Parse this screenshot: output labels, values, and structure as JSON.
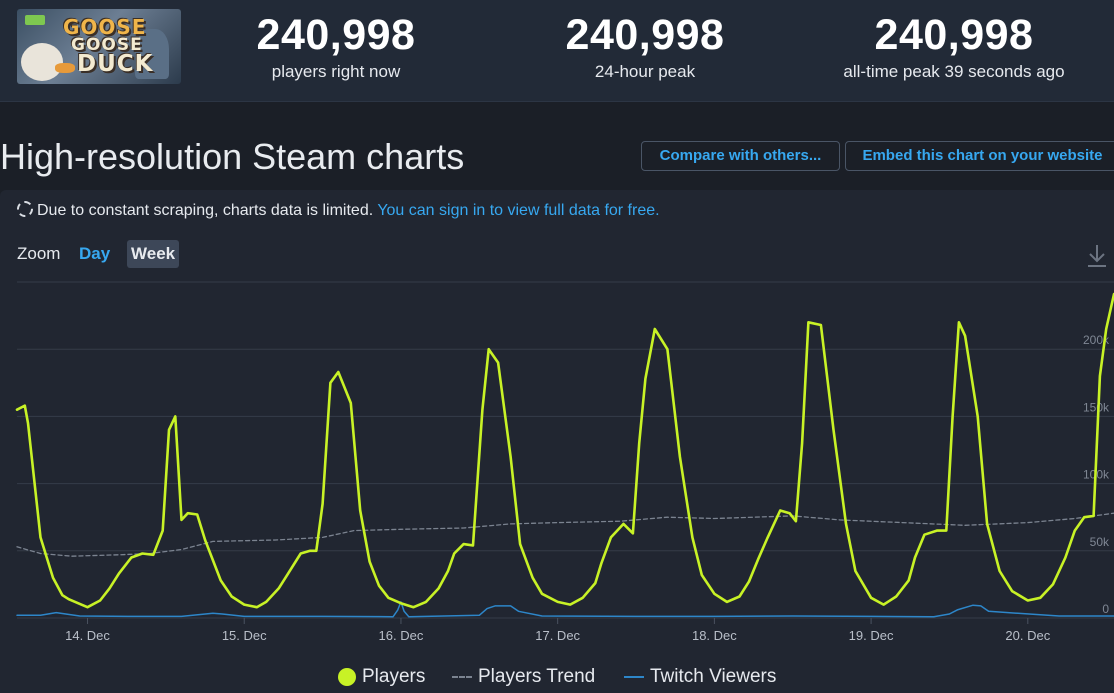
{
  "game": {
    "logo_text": [
      "GOOSE",
      "GOOSE",
      "DUCK"
    ]
  },
  "stats": [
    {
      "value": "240,998",
      "label": "players right now"
    },
    {
      "value": "240,998",
      "label": "24-hour peak"
    },
    {
      "value": "240,998",
      "label": "all-time peak 39 seconds ago"
    }
  ],
  "page": {
    "title": "High-resolution Steam charts",
    "compare_button": "Compare with others...",
    "embed_button": "Embed this chart on your website"
  },
  "notice": {
    "text": "Due to constant scraping, charts data is limited.",
    "link": "You can sign in to view full data for free."
  },
  "zoom": {
    "label": "Zoom",
    "options": [
      "Day",
      "Week"
    ],
    "active": "Week"
  },
  "colors": {
    "players": "#c8f226",
    "trend": "#7b8390",
    "twitch": "#2d86c9",
    "accent": "#37a8f0"
  },
  "chart_data": {
    "type": "line",
    "title": "",
    "x_axis": {
      "ticks": [
        "14. Dec",
        "15. Dec",
        "16. Dec",
        "17. Dec",
        "18. Dec",
        "19. Dec",
        "20. Dec"
      ],
      "start_day": 13.55,
      "end_day": 20.55
    },
    "y_axis": {
      "min": 0,
      "max": 250000,
      "ticks": [
        0,
        50000,
        100000,
        150000,
        200000
      ],
      "tick_labels": [
        "0",
        "50k",
        "100k",
        "150k",
        "200k"
      ]
    },
    "grid": true,
    "legend": [
      "Players",
      "Players Trend",
      "Twitch Viewers"
    ],
    "series": [
      {
        "name": "Players",
        "x": [
          13.55,
          13.6,
          13.62,
          13.7,
          13.78,
          13.84,
          13.88,
          13.96,
          14.0,
          14.08,
          14.14,
          14.2,
          14.28,
          14.35,
          14.42,
          14.48,
          14.52,
          14.56,
          14.6,
          14.64,
          14.7,
          14.75,
          14.85,
          14.92,
          15.0,
          15.08,
          15.14,
          15.22,
          15.28,
          15.36,
          15.42,
          15.46,
          15.5,
          15.55,
          15.6,
          15.68,
          15.74,
          15.8,
          15.86,
          15.92,
          16.0,
          16.08,
          16.16,
          16.24,
          16.3,
          16.34,
          16.4,
          16.46,
          16.52,
          16.56,
          16.62,
          16.7,
          16.76,
          16.84,
          16.9,
          17.0,
          17.08,
          17.16,
          17.24,
          17.28,
          17.34,
          17.42,
          17.48,
          17.52,
          17.56,
          17.62,
          17.7,
          17.78,
          17.86,
          17.92,
          18.0,
          18.08,
          18.16,
          18.22,
          18.28,
          18.34,
          18.42,
          18.48,
          18.52,
          18.56,
          18.6,
          18.68,
          18.76,
          18.84,
          18.9,
          19.0,
          19.08,
          19.16,
          19.24,
          19.28,
          19.34,
          19.42,
          19.48,
          19.52,
          19.56,
          19.6,
          19.68,
          19.74,
          19.82,
          19.9,
          20.0,
          20.08,
          20.16,
          20.24,
          20.3,
          20.36,
          20.42,
          20.46,
          20.5,
          20.55
        ],
        "values": [
          155000,
          158000,
          145000,
          60000,
          30000,
          17000,
          14000,
          10000,
          8000,
          13000,
          22000,
          33000,
          45000,
          48000,
          47000,
          65000,
          140000,
          150000,
          73000,
          78000,
          77000,
          58000,
          28000,
          16000,
          10000,
          8000,
          12000,
          22000,
          33000,
          48000,
          50000,
          50000,
          85000,
          175000,
          183000,
          160000,
          80000,
          42000,
          24000,
          15000,
          11000,
          8000,
          12000,
          22000,
          35000,
          48000,
          55000,
          54000,
          155000,
          200000,
          190000,
          120000,
          55000,
          30000,
          18000,
          12000,
          10000,
          15000,
          26000,
          41000,
          60000,
          70000,
          63000,
          130000,
          178000,
          215000,
          200000,
          120000,
          60000,
          32000,
          18000,
          12000,
          16000,
          27000,
          44000,
          60000,
          80000,
          78000,
          72000,
          130000,
          220000,
          218000,
          140000,
          70000,
          35000,
          15000,
          10000,
          16000,
          28000,
          45000,
          62000,
          65000,
          65000,
          150000,
          220000,
          210000,
          150000,
          70000,
          35000,
          20000,
          13000,
          15000,
          25000,
          45000,
          65000,
          75000,
          76000,
          180000,
          215000,
          240998
        ]
      },
      {
        "name": "Players Trend",
        "x": [
          13.55,
          13.7,
          13.9,
          14.2,
          14.4,
          14.6,
          14.8,
          15.2,
          15.5,
          15.7,
          16.0,
          16.4,
          16.7,
          17.0,
          17.4,
          17.7,
          18.0,
          18.5,
          18.8,
          19.2,
          19.6,
          20.0,
          20.3,
          20.55
        ],
        "values": [
          53000,
          48000,
          46000,
          47000,
          48000,
          51000,
          57000,
          58000,
          60000,
          65000,
          66000,
          67000,
          70000,
          71000,
          72000,
          75000,
          74000,
          76000,
          73000,
          71000,
          69000,
          71000,
          74000,
          78000
        ]
      },
      {
        "name": "Twitch Viewers",
        "x": [
          13.55,
          13.7,
          13.8,
          13.95,
          14.3,
          14.6,
          14.8,
          14.86,
          15.0,
          15.5,
          15.95,
          15.98,
          16.0,
          16.02,
          16.05,
          16.5,
          16.55,
          16.6,
          16.7,
          16.75,
          16.9,
          17.5,
          18.0,
          18.5,
          19.0,
          19.4,
          19.5,
          19.55,
          19.65,
          19.7,
          19.75,
          20.2,
          20.55
        ],
        "values": [
          2000,
          2000,
          4000,
          1500,
          1200,
          1200,
          3500,
          3000,
          1200,
          1200,
          1000,
          6000,
          12000,
          5000,
          1000,
          2000,
          7000,
          9000,
          9000,
          5000,
          1500,
          1200,
          1200,
          1500,
          1200,
          1000,
          3000,
          6000,
          9500,
          9000,
          5000,
          1500,
          1500
        ]
      }
    ]
  }
}
